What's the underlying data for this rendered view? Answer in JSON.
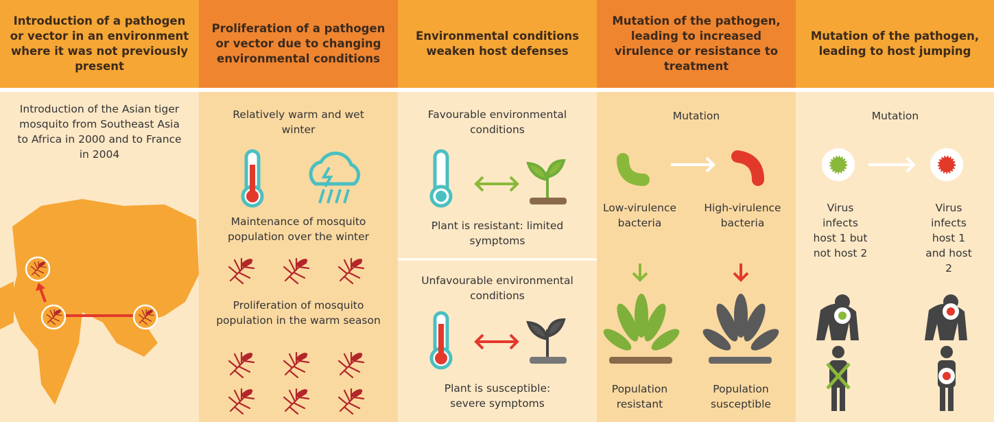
{
  "columns": [
    {
      "header": "Introduction of a pathogen or vector in an environment where it was not previously present",
      "caption": "Introduction of the Asian tiger mosquito from Southeast Asia to Africa in 2000 and to France in 2004"
    },
    {
      "header": "Proliferation of a pathogen or vector due to changing environmental conditions",
      "caption": "Relatively warm and wet winter",
      "maintenance": "Maintenance of mosquito population over the winter",
      "proliferation": "Proliferation of mosquito population in the warm season"
    },
    {
      "header": "Environmental conditions weaken host defenses",
      "favourable": "Favourable environmental conditions",
      "resistant": "Plant is resistant: limited symptoms",
      "unfavourable": "Unfavourable environmental conditions",
      "susceptible": "Plant is susceptible: severe symptoms"
    },
    {
      "header": "Mutation of the pathogen, leading to increased virulence or resistance to treatment",
      "caption": "Mutation",
      "low": "Low-virulence bacteria",
      "high": "High-virulence bacteria",
      "pop_resistant": "Population resistant",
      "pop_susceptible": "Population susceptible"
    },
    {
      "header": "Mutation of the pathogen, leading to host jumping",
      "caption": "Mutation",
      "virus1": "Virus infects host 1 but not host 2",
      "virus2": "Virus infects host 1 and host 2"
    }
  ]
}
